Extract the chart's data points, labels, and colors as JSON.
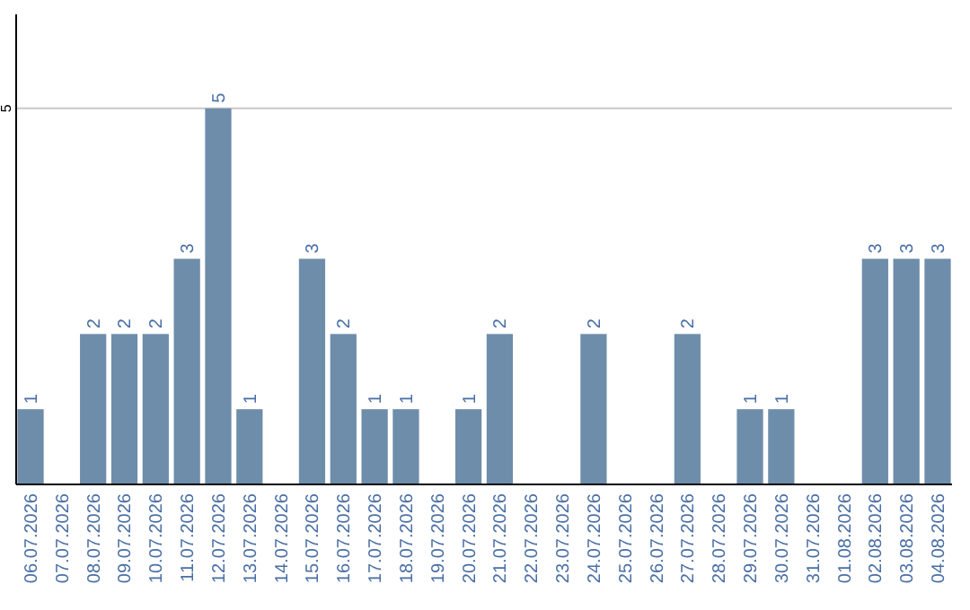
{
  "chart_data": {
    "type": "bar",
    "categories": [
      "06.07.2026",
      "07.07.2026",
      "08.07.2026",
      "09.07.2026",
      "10.07.2026",
      "11.07.2026",
      "12.07.2026",
      "13.07.2026",
      "14.07.2026",
      "15.07.2026",
      "16.07.2026",
      "17.07.2026",
      "18.07.2026",
      "19.07.2026",
      "20.07.2026",
      "21.07.2026",
      "22.07.2026",
      "23.07.2026",
      "24.07.2026",
      "25.07.2026",
      "26.07.2026",
      "27.07.2026",
      "28.07.2026",
      "29.07.2026",
      "30.07.2026",
      "31.07.2026",
      "01.08.2026",
      "02.08.2026",
      "03.08.2026",
      "04.08.2026"
    ],
    "values": [
      1,
      0,
      2,
      2,
      2,
      3,
      5,
      1,
      0,
      3,
      2,
      1,
      1,
      0,
      1,
      2,
      0,
      0,
      2,
      0,
      0,
      2,
      0,
      1,
      1,
      0,
      0,
      3,
      3,
      3
    ],
    "value_labels": [
      "1",
      null,
      "2",
      "2",
      "2",
      "3",
      "5",
      "1",
      null,
      "3",
      "2",
      "1",
      "1",
      null,
      "1",
      "2",
      null,
      null,
      "2",
      null,
      null,
      "2",
      null,
      "1",
      "1",
      null,
      null,
      "3",
      "3",
      "3"
    ],
    "color": "#6e8daa",
    "ylim": [
      0,
      6.25
    ],
    "yticks": [
      5
    ],
    "grid": "y"
  }
}
